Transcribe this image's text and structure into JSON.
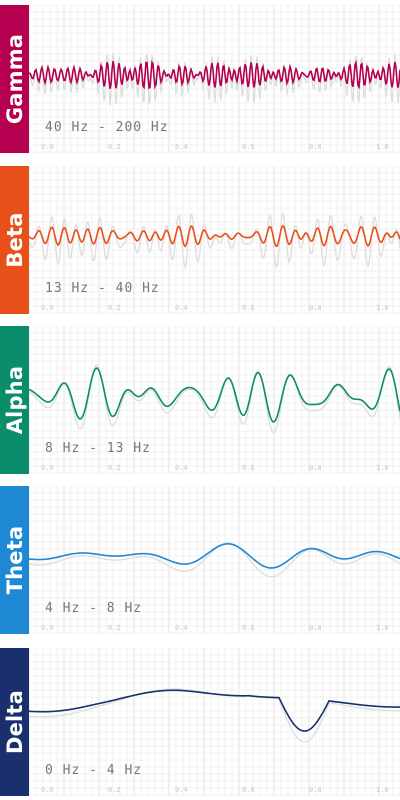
{
  "bands": [
    {
      "name": "Gamma",
      "range": "40 Hz - 200 Hz",
      "color": "#b4004e",
      "freq": 52,
      "amp": 16,
      "ghost": 1.9,
      "seed": 1
    },
    {
      "name": "Beta",
      "range": "13 Hz - 40 Hz",
      "color": "#e8501a",
      "freq": 26,
      "amp": 13,
      "ghost": 2.6,
      "seed": 2
    },
    {
      "name": "Alpha",
      "range": "8 Hz - 13 Hz",
      "color": "#0b8c6b",
      "freq": 9.5,
      "amp": 26,
      "ghost": 1.25,
      "seed": 3
    },
    {
      "name": "Theta",
      "range": "4 Hz - 8 Hz",
      "color": "#1e88d4",
      "freq": 4.5,
      "amp": 14,
      "ghost": 1.4,
      "seed": 4
    },
    {
      "name": "Delta",
      "range": "0 Hz - 4 Hz",
      "color": "#1a2f6e",
      "freq": 1.6,
      "amp": 18,
      "ghost": 1.3,
      "seed": 5
    }
  ],
  "axis_ticks": [
    "0.0",
    "0.2",
    "0.4",
    "0.6",
    "0.8",
    "1.0"
  ]
}
